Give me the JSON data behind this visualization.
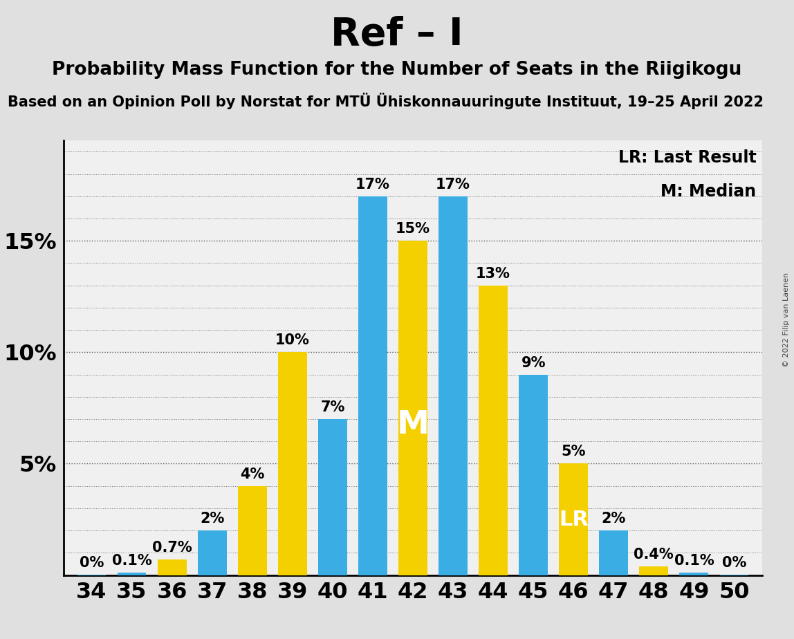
{
  "title": "Ref – I",
  "subtitle": "Probability Mass Function for the Number of Seats in the Riigikogu",
  "subtitle2": "Based on an Opinion Poll by Norstat for MTÜ Ühiskonnauuringute Instituut, 19–25 April 2022",
  "copyright": "© 2022 Filip van Laenen",
  "seats": [
    34,
    35,
    36,
    37,
    38,
    39,
    40,
    41,
    42,
    43,
    44,
    45,
    46,
    47,
    48,
    49,
    50
  ],
  "probabilities": [
    0.03,
    0.1,
    0.7,
    2.0,
    4.0,
    10.0,
    7.0,
    17.0,
    15.0,
    17.0,
    13.0,
    9.0,
    5.0,
    2.0,
    0.4,
    0.1,
    0.03
  ],
  "bar_colors": [
    "#3aade4",
    "#3aade4",
    "#f5d000",
    "#3aade4",
    "#f5d000",
    "#f5d000",
    "#3aade4",
    "#3aade4",
    "#f5d000",
    "#3aade4",
    "#f5d000",
    "#3aade4",
    "#f5d000",
    "#3aade4",
    "#f5d000",
    "#3aade4",
    "#3aade4"
  ],
  "labels": [
    "0%",
    "0.1%",
    "0.7%",
    "2%",
    "4%",
    "10%",
    "7%",
    "17%",
    "15%",
    "17%",
    "13%",
    "9%",
    "5%",
    "2%",
    "0.4%",
    "0.1%",
    "0%"
  ],
  "median_seat": 42,
  "lr_seat": 46,
  "fig_bg_color": "#e0e0e0",
  "plot_bg_color": "#f0f0f0",
  "ylim_max": 19.5,
  "major_yticks": [
    5,
    10,
    15
  ],
  "major_ytick_labels": [
    "5%",
    "10%",
    "15%"
  ],
  "minor_yticks": [
    1,
    2,
    3,
    4,
    6,
    7,
    8,
    9,
    11,
    12,
    13,
    14,
    16,
    17,
    18,
    19
  ],
  "bar_width": 0.72,
  "title_fontsize": 40,
  "subtitle_fontsize": 19,
  "subtitle2_fontsize": 15,
  "tick_fontsize": 23,
  "bar_label_fontsize": 15,
  "M_fontsize": 34,
  "LR_fontsize": 22,
  "legend_fontsize": 17
}
